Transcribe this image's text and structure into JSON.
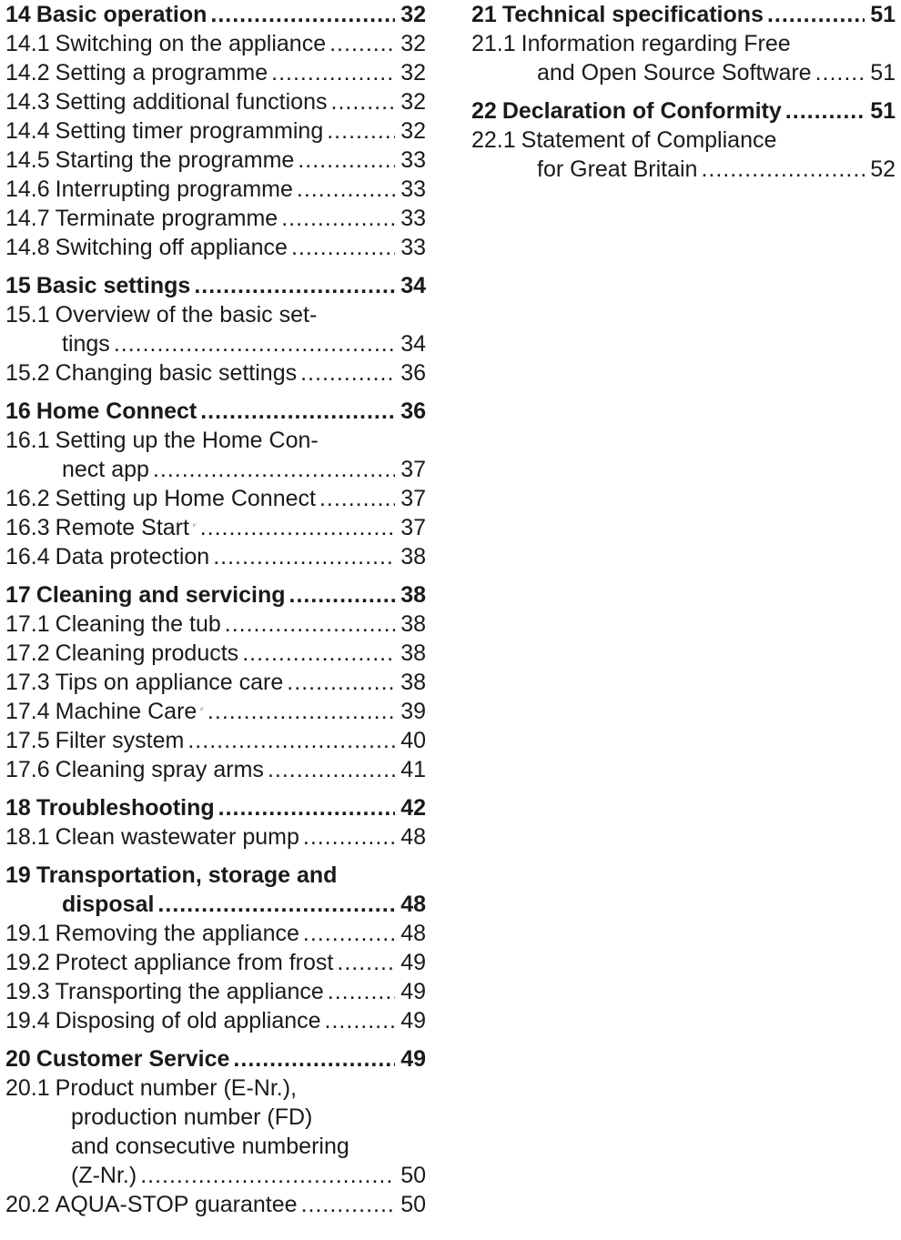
{
  "left": [
    {
      "num": "14",
      "title": "Basic operation",
      "page": "32",
      "items": [
        {
          "num": "14.1",
          "title": "Switching on the appliance",
          "page": "32"
        },
        {
          "num": "14.2",
          "title": "Setting a programme",
          "page": "32"
        },
        {
          "num": "14.3",
          "title": "Setting additional functions",
          "page": "32"
        },
        {
          "num": "14.4",
          "title": "Setting timer programming",
          "page": "32"
        },
        {
          "num": "14.5",
          "title": "Starting the programme",
          "page": "33"
        },
        {
          "num": "14.6",
          "title": "Interrupting programme",
          "page": "33"
        },
        {
          "num": "14.7",
          "title": "Terminate programme",
          "page": "33"
        },
        {
          "num": "14.8",
          "title": "Switching off appliance",
          "page": "33"
        }
      ]
    },
    {
      "num": "15",
      "title": "Basic settings",
      "page": "34",
      "items": [
        {
          "num": "15.1",
          "title_line1": "Overview of the basic set-",
          "title_line2": "tings",
          "page": "34"
        },
        {
          "num": "15.2",
          "title": "Changing basic settings",
          "page": "36"
        }
      ]
    },
    {
      "num": "16",
      "title": "Home Connect",
      "page": "36",
      "items": [
        {
          "num": "16.1",
          "title_line1": "Setting up the Home Con-",
          "title_line2": "nect app",
          "page": "37"
        },
        {
          "num": "16.2",
          "title": "Setting up Home Connect",
          "page": "37"
        },
        {
          "num": "16.3",
          "title": "Remote Start",
          "icon": "remote-start-icon",
          "page": "37"
        },
        {
          "num": "16.4",
          "title": "Data protection",
          "page": "38"
        }
      ]
    },
    {
      "num": "17",
      "title": "Cleaning and servicing",
      "page": "38",
      "items": [
        {
          "num": "17.1",
          "title": "Cleaning the tub",
          "page": "38"
        },
        {
          "num": "17.2",
          "title": "Cleaning products",
          "page": "38"
        },
        {
          "num": "17.3",
          "title": "Tips on appliance care",
          "page": "38"
        },
        {
          "num": "17.4",
          "title": "Machine Care",
          "icon": "machine-care-icon",
          "page": "39"
        },
        {
          "num": "17.5",
          "title": "Filter system",
          "page": "40"
        },
        {
          "num": "17.6",
          "title": "Cleaning spray arms",
          "page": "41"
        }
      ]
    },
    {
      "num": "18",
      "title": "Troubleshooting",
      "page": "42",
      "items": [
        {
          "num": "18.1",
          "title": "Clean wastewater pump",
          "page": "48"
        }
      ]
    },
    {
      "num": "19",
      "title_line1": "Transportation, storage and",
      "title_line2": "disposal",
      "page": "48",
      "items": [
        {
          "num": "19.1",
          "title": "Removing the appliance",
          "page": "48"
        },
        {
          "num": "19.2",
          "title": "Protect appliance from frost",
          "page": "49"
        },
        {
          "num": "19.3",
          "title": "Transporting the appliance",
          "page": "49"
        },
        {
          "num": "19.4",
          "title": "Disposing of old appliance",
          "page": "49"
        }
      ]
    },
    {
      "num": "20",
      "title": "Customer Service",
      "page": "49",
      "items": [
        {
          "num": "20.1",
          "lines": [
            "Product number (E-Nr.),",
            "production number (FD)",
            "and consecutive numbering",
            "(Z-Nr.)"
          ],
          "page": "50"
        },
        {
          "num": "20.2",
          "title": "AQUA-STOP guarantee",
          "page": "50"
        }
      ]
    }
  ],
  "right": [
    {
      "num": "21",
      "title": "Technical specifications",
      "page": "51",
      "items": [
        {
          "num": "21.1",
          "title_line1": "Information regarding Free",
          "title_line2": "and Open Source Software",
          "page": "51"
        }
      ]
    },
    {
      "num": "22",
      "title": "Declaration of Conformity",
      "page": "51",
      "items": [
        {
          "num": "22.1",
          "title_line1": "Statement of Compliance",
          "title_line2": "for Great Britain",
          "page": "52"
        }
      ]
    }
  ]
}
